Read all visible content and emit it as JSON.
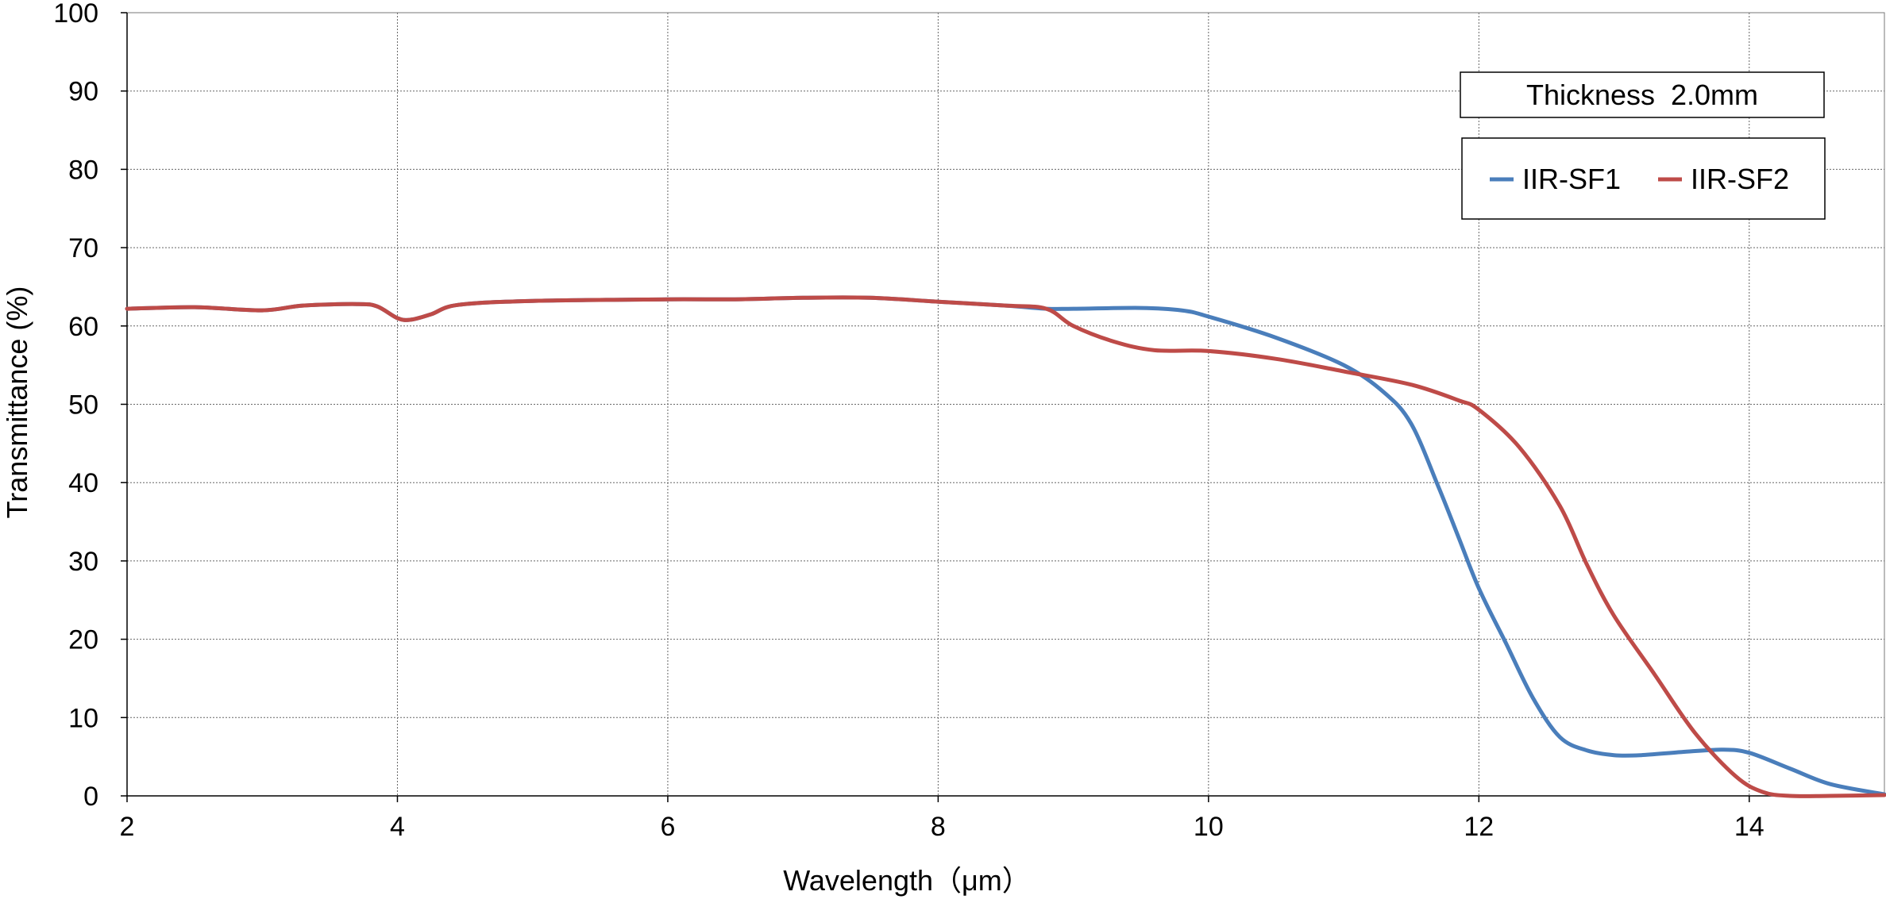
{
  "chart_data": {
    "type": "line",
    "xlabel": "Wavelength（μm）",
    "ylabel": "Transmittance (%)",
    "xlim": [
      2,
      15
    ],
    "ylim": [
      0,
      100
    ],
    "x_ticks": [
      2,
      4,
      6,
      8,
      10,
      12,
      14
    ],
    "y_ticks": [
      0,
      10,
      20,
      30,
      40,
      50,
      60,
      70,
      80,
      90,
      100
    ],
    "grid": true,
    "annotation": "Thickness  2.0mm",
    "legend_position": "top-right",
    "series": [
      {
        "name": "IIR-SF1",
        "color": "#4a7ebb",
        "x": [
          2,
          2.5,
          3.0,
          3.3,
          3.7,
          3.85,
          4.0,
          4.1,
          4.25,
          4.45,
          5,
          6,
          6.5,
          7,
          7.5,
          8,
          8.5,
          8.8,
          9.0,
          9.5,
          9.8,
          10.0,
          10.5,
          11.0,
          11.3,
          11.5,
          11.7,
          11.85,
          12.0,
          12.2,
          12.4,
          12.6,
          12.8,
          13.0,
          13.2,
          13.5,
          13.8,
          14.0,
          14.3,
          14.6,
          15.0
        ],
        "y": [
          62.2,
          62.4,
          62.0,
          62.6,
          62.8,
          62.5,
          61.0,
          60.8,
          61.5,
          62.7,
          63.2,
          63.4,
          63.4,
          63.6,
          63.6,
          63.1,
          62.6,
          62.2,
          62.2,
          62.3,
          62.0,
          61.2,
          58.5,
          55.0,
          51.5,
          47.5,
          39.5,
          33.0,
          26.5,
          19.5,
          12.5,
          7.5,
          5.8,
          5.2,
          5.2,
          5.6,
          5.9,
          5.5,
          3.5,
          1.5,
          0.2
        ]
      },
      {
        "name": "IIR-SF2",
        "color": "#be4b48",
        "x": [
          2,
          2.5,
          3.0,
          3.3,
          3.7,
          3.85,
          4.0,
          4.1,
          4.25,
          4.45,
          5,
          6,
          6.5,
          7,
          7.5,
          8,
          8.5,
          8.8,
          9.0,
          9.3,
          9.6,
          10.0,
          10.5,
          11.0,
          11.5,
          11.85,
          12.0,
          12.3,
          12.6,
          12.8,
          13.0,
          13.3,
          13.6,
          13.9,
          14.1,
          14.3,
          14.6,
          15.0
        ],
        "y": [
          62.2,
          62.4,
          62.0,
          62.6,
          62.8,
          62.5,
          61.0,
          60.8,
          61.5,
          62.7,
          63.2,
          63.4,
          63.4,
          63.6,
          63.6,
          63.1,
          62.6,
          62.2,
          60.0,
          58.0,
          56.9,
          56.8,
          55.8,
          54.2,
          52.5,
          50.5,
          49.3,
          44.5,
          37.0,
          29.5,
          23.0,
          15.5,
          8.0,
          2.5,
          0.5,
          0.0,
          0.0,
          0.1
        ]
      }
    ]
  }
}
